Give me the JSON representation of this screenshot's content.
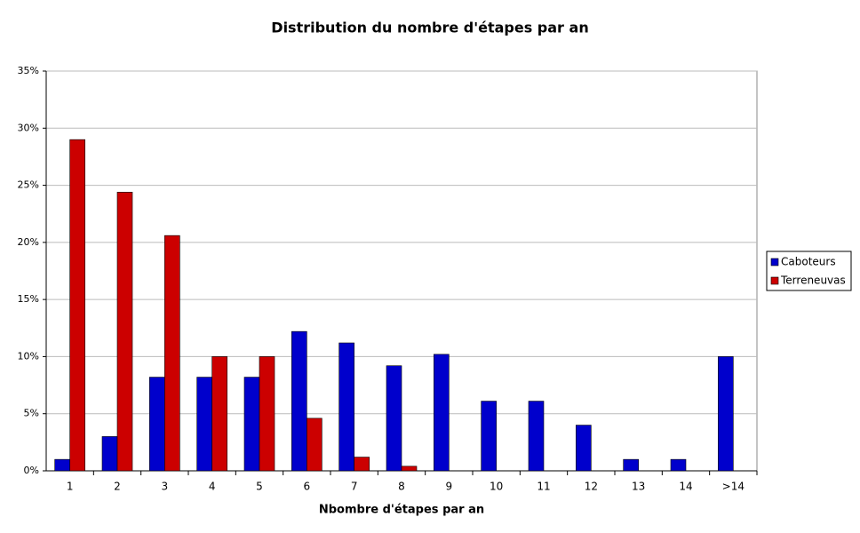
{
  "chart_data": {
    "type": "bar",
    "title": "Distribution du nombre d'étapes par an",
    "x_label": "Nbombre d'étapes par an",
    "categories": [
      "1",
      "2",
      "3",
      "4",
      "5",
      "6",
      "7",
      "8",
      "9",
      "10",
      "11",
      "12",
      "13",
      "14",
      ">14"
    ],
    "series": [
      {
        "name": "Caboteurs",
        "color": "#0000cc",
        "values": [
          1.0,
          3.0,
          8.2,
          8.2,
          8.2,
          12.2,
          11.2,
          9.2,
          10.2,
          6.1,
          6.1,
          4.0,
          1.0,
          1.0,
          10.0
        ]
      },
      {
        "name": "Terreneuvas",
        "color": "#cc0000",
        "values": [
          29.0,
          24.4,
          20.6,
          10.0,
          10.0,
          4.6,
          1.2,
          0.4,
          0,
          0,
          0,
          0,
          0,
          0,
          0
        ]
      }
    ],
    "ylim": [
      0,
      35
    ],
    "yticks": [
      {
        "value": 0,
        "label": "0%"
      },
      {
        "value": 5,
        "label": "5%"
      },
      {
        "value": 10,
        "label": "10%"
      },
      {
        "value": 15,
        "label": "15%"
      },
      {
        "value": 20,
        "label": "20%"
      },
      {
        "value": 25,
        "label": "25%"
      },
      {
        "value": 30,
        "label": "30%"
      },
      {
        "value": 35,
        "label": "35%"
      }
    ],
    "grid": true,
    "legend": "right"
  }
}
